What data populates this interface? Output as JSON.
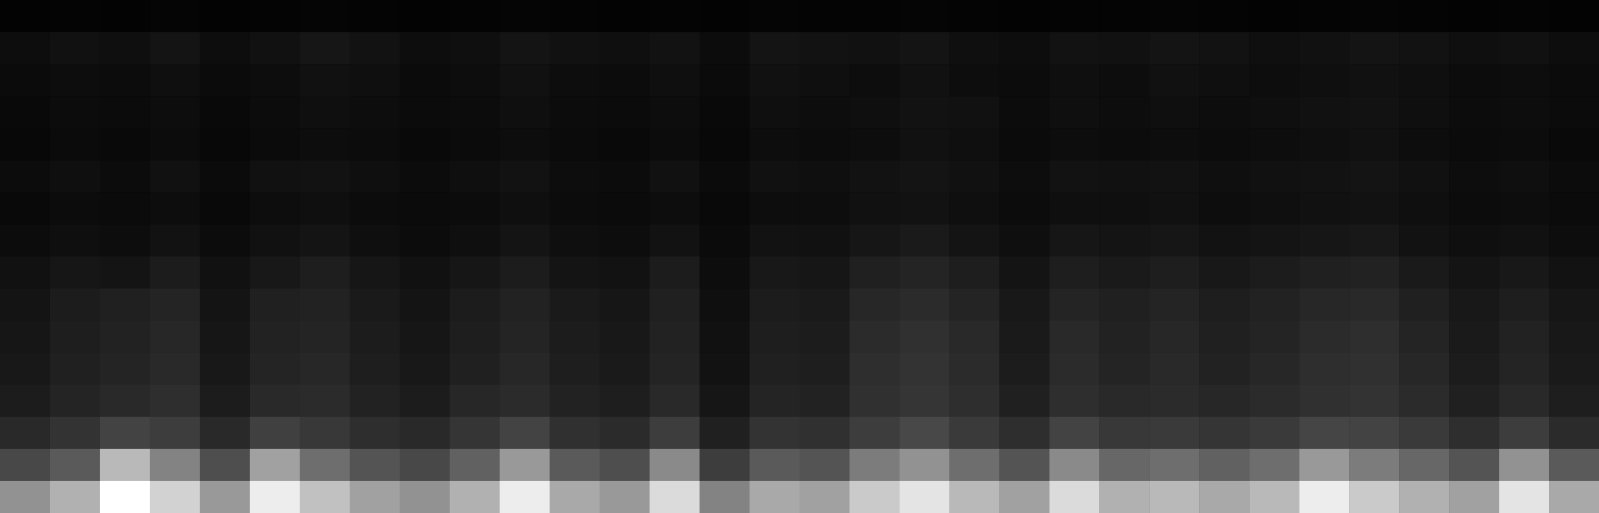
{
  "chart_data": {
    "type": "heatmap",
    "color": "#ffffff",
    "tick_labels": false,
    "values": [
      [
        6,
        7,
        6,
        8,
        6,
        7,
        8,
        7,
        6,
        7,
        8,
        7,
        6,
        7,
        6,
        8,
        7,
        7,
        8,
        7,
        6,
        7,
        7,
        8,
        7,
        6,
        7,
        8,
        7,
        6,
        7,
        6
      ],
      [
        14,
        16,
        15,
        18,
        14,
        16,
        19,
        17,
        14,
        15,
        18,
        16,
        15,
        17,
        13,
        18,
        17,
        16,
        18,
        15,
        14,
        17,
        16,
        18,
        17,
        15,
        16,
        18,
        17,
        15,
        16,
        14
      ],
      [
        12,
        14,
        13,
        15,
        12,
        14,
        16,
        15,
        12,
        14,
        16,
        14,
        13,
        15,
        12,
        16,
        15,
        14,
        16,
        14,
        13,
        15,
        14,
        16,
        15,
        14,
        15,
        16,
        15,
        13,
        14,
        12
      ],
      [
        11,
        13,
        12,
        14,
        11,
        13,
        15,
        14,
        12,
        13,
        15,
        13,
        12,
        14,
        11,
        15,
        14,
        15,
        17,
        16,
        13,
        15,
        14,
        15,
        14,
        15,
        16,
        17,
        15,
        13,
        14,
        12
      ],
      [
        10,
        12,
        11,
        13,
        10,
        12,
        14,
        13,
        11,
        12,
        14,
        12,
        11,
        13,
        10,
        14,
        13,
        14,
        16,
        15,
        12,
        14,
        13,
        14,
        13,
        14,
        15,
        16,
        14,
        12,
        13,
        11
      ],
      [
        13,
        15,
        13,
        16,
        12,
        16,
        17,
        15,
        13,
        15,
        17,
        14,
        13,
        16,
        12,
        16,
        15,
        17,
        18,
        16,
        14,
        17,
        16,
        17,
        15,
        16,
        17,
        18,
        16,
        14,
        15,
        13
      ],
      [
        11,
        13,
        12,
        14,
        11,
        14,
        15,
        13,
        12,
        13,
        15,
        13,
        12,
        14,
        11,
        14,
        14,
        16,
        17,
        15,
        13,
        15,
        15,
        16,
        14,
        15,
        16,
        17,
        15,
        13,
        14,
        12
      ],
      [
        13,
        15,
        14,
        17,
        13,
        16,
        18,
        15,
        13,
        15,
        18,
        15,
        14,
        17,
        12,
        17,
        16,
        19,
        21,
        18,
        15,
        19,
        18,
        19,
        17,
        18,
        19,
        20,
        17,
        15,
        16,
        14
      ],
      [
        16,
        19,
        18,
        22,
        16,
        20,
        23,
        19,
        16,
        19,
        22,
        18,
        17,
        22,
        14,
        20,
        19,
        24,
        26,
        23,
        18,
        23,
        21,
        23,
        20,
        22,
        24,
        25,
        21,
        18,
        20,
        17
      ],
      [
        18,
        22,
        24,
        26,
        18,
        24,
        25,
        21,
        18,
        22,
        25,
        21,
        19,
        24,
        15,
        22,
        21,
        27,
        29,
        26,
        20,
        26,
        24,
        26,
        23,
        25,
        27,
        28,
        24,
        20,
        23,
        19
      ],
      [
        19,
        23,
        25,
        27,
        19,
        25,
        26,
        22,
        19,
        23,
        26,
        22,
        20,
        25,
        16,
        23,
        22,
        29,
        31,
        28,
        21,
        28,
        25,
        27,
        24,
        26,
        29,
        30,
        26,
        21,
        25,
        20
      ],
      [
        20,
        24,
        26,
        28,
        20,
        26,
        27,
        23,
        20,
        24,
        27,
        23,
        21,
        26,
        17,
        24,
        23,
        30,
        32,
        29,
        22,
        29,
        26,
        28,
        25,
        27,
        30,
        31,
        27,
        22,
        26,
        21
      ],
      [
        22,
        26,
        28,
        30,
        22,
        28,
        29,
        25,
        22,
        27,
        29,
        25,
        23,
        28,
        19,
        26,
        25,
        31,
        33,
        30,
        24,
        30,
        28,
        29,
        27,
        29,
        31,
        32,
        29,
        24,
        28,
        23
      ],
      [
        28,
        32,
        38,
        36,
        28,
        37,
        34,
        30,
        28,
        33,
        38,
        31,
        29,
        36,
        24,
        32,
        31,
        36,
        40,
        35,
        30,
        38,
        34,
        35,
        33,
        35,
        39,
        38,
        35,
        30,
        36,
        29
      ],
      [
        40,
        46,
        72,
        58,
        42,
        66,
        52,
        44,
        40,
        48,
        64,
        46,
        42,
        60,
        36,
        46,
        44,
        56,
        62,
        52,
        44,
        60,
        50,
        52,
        48,
        52,
        64,
        56,
        50,
        44,
        62,
        46
      ],
      [
        62,
        70,
        88,
        78,
        64,
        84,
        74,
        66,
        62,
        70,
        84,
        68,
        64,
        80,
        58,
        68,
        66,
        76,
        82,
        72,
        66,
        80,
        70,
        72,
        68,
        72,
        84,
        76,
        70,
        66,
        82,
        68
      ]
    ]
  }
}
